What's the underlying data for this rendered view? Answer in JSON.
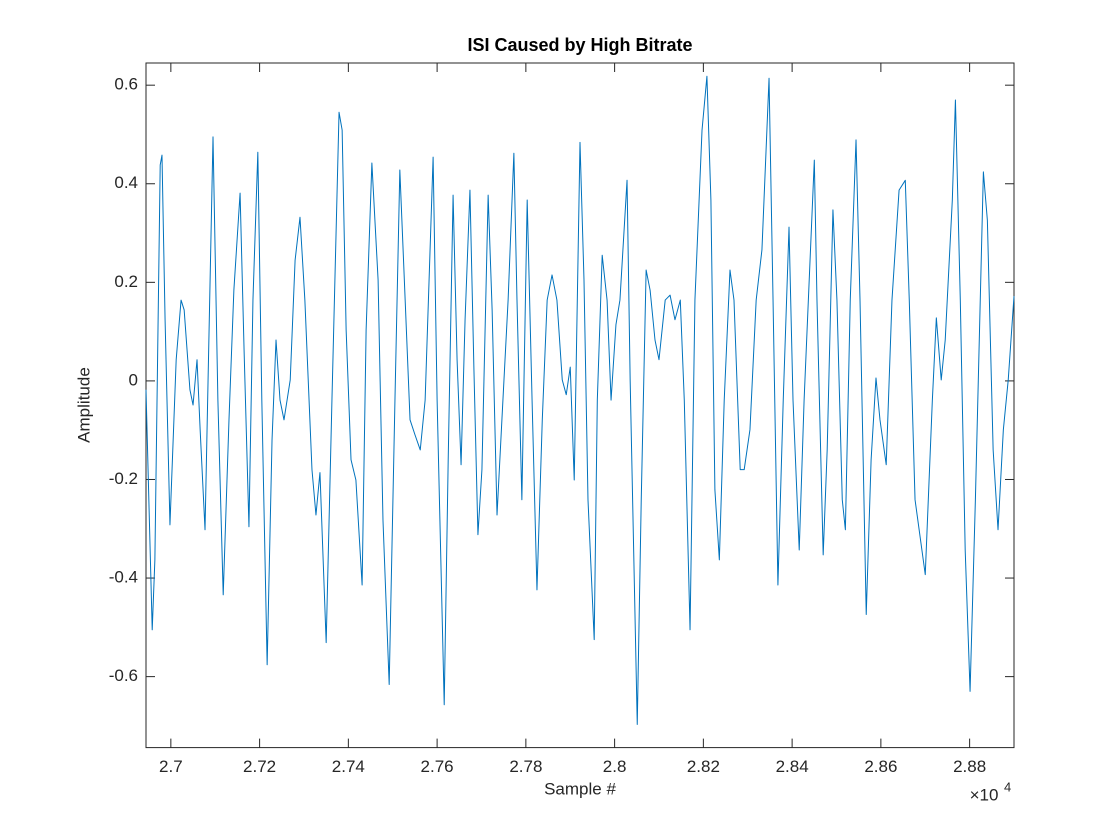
{
  "chart_data": {
    "type": "line",
    "title": "ISI Caused by High Bitrate",
    "xlabel": "Sample #",
    "ylabel": "Amplitude",
    "x_multiplier": {
      "base": "×10",
      "exponent": "4"
    },
    "color": "#0072bd",
    "xlim": [
      26944,
      28900
    ],
    "ylim": [
      -0.744,
      0.645
    ],
    "xticks": [
      {
        "value": 27000,
        "label": "2.7"
      },
      {
        "value": 27200,
        "label": "2.72"
      },
      {
        "value": 27400,
        "label": "2.74"
      },
      {
        "value": 27600,
        "label": "2.76"
      },
      {
        "value": 27800,
        "label": "2.78"
      },
      {
        "value": 28000,
        "label": "2.8"
      },
      {
        "value": 28200,
        "label": "2.82"
      },
      {
        "value": 28400,
        "label": "2.84"
      },
      {
        "value": 28600,
        "label": "2.86"
      },
      {
        "value": 28800,
        "label": "2.88"
      }
    ],
    "yticks": [
      -0.6,
      -0.4,
      -0.2,
      0,
      0.2,
      0.4,
      0.6
    ],
    "x": [
      26944,
      26958,
      26964,
      26976,
      26980,
      26987,
      26998,
      27012,
      27023,
      27030,
      27043,
      27050,
      27059,
      27066,
      27077,
      27095,
      27106,
      27118,
      27131,
      27142,
      27156,
      27165,
      27176,
      27185,
      27196,
      27205,
      27217,
      27228,
      27237,
      27246,
      27255,
      27269,
      27280,
      27291,
      27302,
      27318,
      27327,
      27336,
      27350,
      27363,
      27379,
      27386,
      27395,
      27406,
      27417,
      27431,
      27440,
      27453,
      27467,
      27478,
      27492,
      27505,
      27516,
      27528,
      27539,
      27550,
      27562,
      27573,
      27591,
      27600,
      27616,
      27625,
      27636,
      27645,
      27654,
      27663,
      27674,
      27683,
      27692,
      27701,
      27715,
      27724,
      27735,
      27746,
      27760,
      27773,
      27780,
      27791,
      27803,
      27814,
      27825,
      27837,
      27848,
      27859,
      27870,
      27882,
      27891,
      27900,
      27909,
      27922,
      27931,
      27940,
      27954,
      27961,
      27972,
      27983,
      27992,
      28003,
      28012,
      28028,
      28035,
      28051,
      28060,
      28071,
      28080,
      28091,
      28100,
      28114,
      28125,
      28136,
      28148,
      28157,
      28170,
      28181,
      28197,
      28208,
      28217,
      28226,
      28236,
      28247,
      28260,
      28269,
      28283,
      28292,
      28305,
      28319,
      28332,
      28348,
      28357,
      28368,
      28380,
      28393,
      28402,
      28416,
      28427,
      28450,
      28456,
      28470,
      28479,
      28492,
      28501,
      28513,
      28520,
      28531,
      28544,
      28553,
      28567,
      28578,
      28589,
      28598,
      28612,
      28625,
      28641,
      28655,
      28664,
      28677,
      28700,
      28716,
      28725,
      28736,
      28745,
      28761,
      28768,
      28779,
      28790,
      28801,
      28813,
      28831,
      28840,
      28853,
      28864,
      28876,
      28887,
      28900
    ],
    "values": [
      -0.018,
      -0.505,
      -0.363,
      0.438,
      0.458,
      0.124,
      -0.292,
      0.043,
      0.164,
      0.144,
      -0.018,
      -0.049,
      0.043,
      -0.099,
      -0.302,
      0.495,
      -0.039,
      -0.434,
      -0.079,
      0.184,
      0.381,
      0.063,
      -0.296,
      0.164,
      0.464,
      -0.039,
      -0.576,
      -0.12,
      0.083,
      -0.039,
      -0.079,
      0.002,
      0.245,
      0.332,
      0.164,
      -0.18,
      -0.272,
      -0.186,
      -0.531,
      -0.039,
      0.545,
      0.509,
      0.103,
      -0.16,
      -0.201,
      -0.414,
      0.103,
      0.442,
      0.205,
      -0.282,
      -0.616,
      -0.039,
      0.428,
      0.164,
      -0.079,
      -0.109,
      -0.14,
      -0.039,
      0.454,
      -0.039,
      -0.657,
      -0.16,
      0.377,
      0.043,
      -0.17,
      0.124,
      0.387,
      0.022,
      -0.312,
      -0.18,
      0.377,
      0.144,
      -0.272,
      -0.079,
      0.164,
      0.462,
      0.164,
      -0.241,
      0.367,
      -0.039,
      -0.424,
      -0.079,
      0.164,
      0.215,
      0.164,
      0.002,
      -0.028,
      0.028,
      -0.201,
      0.484,
      0.205,
      -0.241,
      -0.525,
      -0.039,
      0.255,
      0.164,
      -0.039,
      0.114,
      0.164,
      0.407,
      0.002,
      -0.697,
      -0.241,
      0.225,
      0.184,
      0.083,
      0.043,
      0.164,
      0.174,
      0.124,
      0.164,
      -0.039,
      -0.505,
      0.164,
      0.509,
      0.618,
      0.367,
      -0.221,
      -0.363,
      -0.039,
      0.225,
      0.164,
      -0.18,
      -0.18,
      -0.099,
      0.164,
      0.266,
      0.614,
      0.164,
      -0.414,
      -0.039,
      0.312,
      -0.039,
      -0.343,
      -0.039,
      0.448,
      0.164,
      -0.353,
      -0.14,
      0.347,
      0.164,
      -0.241,
      -0.302,
      0.164,
      0.489,
      0.164,
      -0.474,
      -0.16,
      0.006,
      -0.079,
      -0.17,
      0.164,
      0.387,
      0.407,
      0.164,
      -0.241,
      -0.393,
      -0.039,
      0.128,
      0.002,
      0.083,
      0.367,
      0.57,
      0.164,
      -0.343,
      -0.63,
      -0.241,
      0.424,
      0.326,
      -0.14,
      -0.302,
      -0.099,
      0.002,
      0.172
    ]
  }
}
